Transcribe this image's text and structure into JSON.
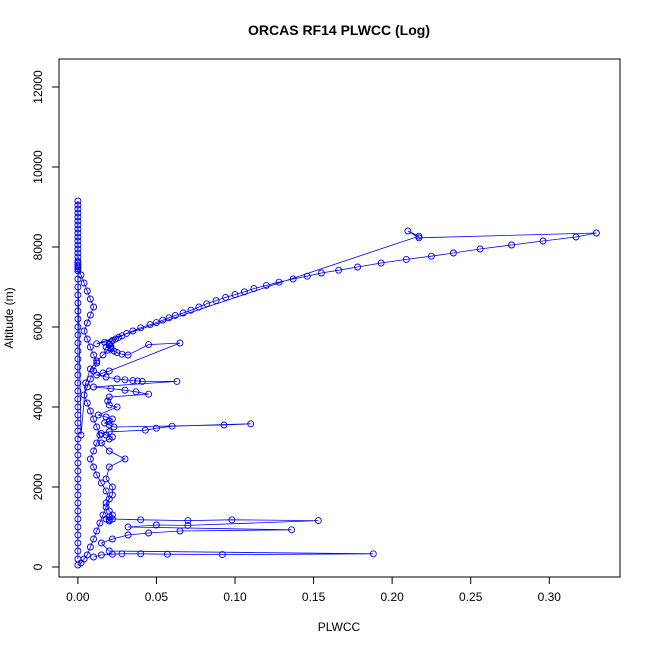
{
  "chart_data": {
    "type": "scatter",
    "title": "ORCAS RF14 PLWCC (Log)",
    "xlabel": "PLWCC",
    "ylabel": "Altitude (m)",
    "xlim": [
      -0.012,
      0.345
    ],
    "ylim": [
      -250,
      12700
    ],
    "x_ticks": [
      0.0,
      0.05,
      0.1,
      0.15,
      0.2,
      0.25,
      0.3
    ],
    "x_tick_labels": [
      "0.00",
      "0.05",
      "0.10",
      "0.15",
      "0.20",
      "0.25",
      "0.30"
    ],
    "y_ticks": [
      0,
      2000,
      4000,
      6000,
      8000,
      10000,
      12000
    ],
    "y_tick_labels": [
      "0",
      "2000",
      "4000",
      "6000",
      "8000",
      "10000",
      "12000"
    ],
    "grid": false,
    "legend": "none",
    "marker": "open-circle",
    "connect_points": true,
    "color": "#0000ff",
    "series": [
      {
        "x": [
          0.0,
          0.0,
          0.0,
          0.0,
          0.0,
          0.0,
          0.0,
          0.0,
          0.0,
          0.0,
          0.0,
          0.0,
          0.0,
          0.0,
          0.0,
          0.0,
          0.0,
          0.0,
          0.0,
          0.0,
          0.002,
          0.005,
          0.008,
          0.012,
          0.016,
          0.019,
          0.021,
          0.021,
          0.02,
          0.02,
          0.021,
          0.022,
          0.024,
          0.026,
          0.028,
          0.031,
          0.035,
          0.04,
          0.046,
          0.05,
          0.054,
          0.058,
          0.062,
          0.067,
          0.072,
          0.077,
          0.082,
          0.088,
          0.094,
          0.1,
          0.106,
          0.112,
          0.12,
          0.128,
          0.137,
          0.146,
          0.155,
          0.166,
          0.178,
          0.193,
          0.209,
          0.225,
          0.239,
          0.256,
          0.276,
          0.296,
          0.317,
          0.33,
          0.217,
          0.21,
          0.217,
          0.012,
          0.017,
          0.022,
          0.02,
          0.018,
          0.021,
          0.023,
          0.025,
          0.028,
          0.032,
          0.045,
          0.065,
          0.02,
          0.016,
          0.012,
          0.018,
          0.025,
          0.03,
          0.035,
          0.038,
          0.041,
          0.063,
          0.01,
          0.021,
          0.03,
          0.037,
          0.045,
          0.02,
          0.019,
          0.02,
          0.025,
          0.013,
          0.018,
          0.022,
          0.02,
          0.017,
          0.02,
          0.023,
          0.093,
          0.11,
          0.06,
          0.05,
          0.043,
          0.02,
          0.015,
          0.018,
          0.022,
          0.02,
          0.015,
          0.02,
          0.03,
          0.02,
          0.018,
          0.022,
          0.022,
          0.018,
          0.02,
          0.022,
          0.02,
          0.018,
          0.02,
          0.02,
          0.022,
          0.04,
          0.07,
          0.098,
          0.153,
          0.07,
          0.05,
          0.032,
          0.136,
          0.065,
          0.045,
          0.032,
          0.022,
          0.015,
          0.02,
          0.188,
          0.092,
          0.057,
          0.04,
          0.028,
          0.022,
          0.015,
          0.01
        ],
        "y": [
          9150,
          9050,
          8950,
          8850,
          8750,
          8650,
          8550,
          8450,
          8350,
          8250,
          8150,
          8050,
          7950,
          7850,
          7750,
          7650,
          7600,
          7550,
          7500,
          7450,
          3300,
          4600,
          4950,
          5150,
          5300,
          5420,
          5480,
          5520,
          5560,
          5580,
          5620,
          5660,
          5700,
          5740,
          5780,
          5840,
          5900,
          5980,
          6060,
          6110,
          6170,
          6230,
          6290,
          6350,
          6420,
          6500,
          6580,
          6660,
          6740,
          6810,
          6880,
          6960,
          7040,
          7120,
          7200,
          7270,
          7350,
          7420,
          7500,
          7600,
          7690,
          7770,
          7850,
          7950,
          8050,
          8150,
          8250,
          8350,
          8230,
          8400,
          8270,
          5580,
          5620,
          5660,
          5580,
          5500,
          5450,
          5400,
          5360,
          5320,
          5300,
          5560,
          5600,
          4900,
          4850,
          4800,
          4750,
          4700,
          4680,
          4660,
          4650,
          4640,
          4640,
          4500,
          4460,
          4420,
          4380,
          4320,
          4250,
          4150,
          4050,
          4000,
          3800,
          3750,
          3700,
          3650,
          3600,
          3550,
          3500,
          3550,
          3580,
          3520,
          3470,
          3420,
          3380,
          3340,
          3300,
          3250,
          3200,
          3100,
          2900,
          2700,
          2500,
          2200,
          2000,
          1800,
          1600,
          1400,
          1300,
          1250,
          1200,
          1180,
          1150,
          1200,
          1180,
          1160,
          1180,
          1160,
          1040,
          1050,
          1000,
          930,
          900,
          850,
          800,
          700,
          600,
          400,
          330,
          310,
          320,
          330,
          330,
          320,
          300,
          250
        ]
      },
      {
        "x": [
          0.0,
          0.0,
          0.0,
          0.0,
          0.0,
          0.0,
          0.0,
          0.0,
          0.0,
          0.0,
          0.0,
          0.0,
          0.0,
          0.0,
          0.0,
          0.0,
          0.0,
          0.0,
          0.0,
          0.0,
          0.0,
          0.0,
          0.0,
          0.0,
          0.0,
          0.0,
          0.0,
          0.0,
          0.0,
          0.0,
          0.0,
          0.0,
          0.0,
          0.0,
          0.0,
          0.0,
          0.0
        ],
        "y": [
          7400,
          7200,
          7000,
          6800,
          6600,
          6400,
          6200,
          6000,
          5800,
          5600,
          5400,
          5200,
          5000,
          4800,
          4600,
          4400,
          4200,
          4000,
          3800,
          3600,
          3400,
          3200,
          3000,
          2800,
          2600,
          2400,
          2200,
          2000,
          1800,
          1600,
          1400,
          1200,
          1000,
          800,
          600,
          400,
          200
        ]
      },
      {
        "x": [
          0.0,
          0.002,
          0.004,
          0.006,
          0.008,
          0.01,
          0.008,
          0.006,
          0.004,
          0.006,
          0.008,
          0.01,
          0.012,
          0.01,
          0.008,
          0.006,
          0.004,
          0.006,
          0.008,
          0.01,
          0.012,
          0.014,
          0.012,
          0.01,
          0.008,
          0.01,
          0.012,
          0.015,
          0.018,
          0.02,
          0.018,
          0.016,
          0.014,
          0.012,
          0.01,
          0.008,
          0.006,
          0.004,
          0.002,
          0.0
        ],
        "y": [
          7500,
          7300,
          7100,
          6900,
          6700,
          6500,
          6300,
          6100,
          5900,
          5700,
          5500,
          5300,
          5100,
          4900,
          4700,
          4500,
          4300,
          4100,
          3900,
          3700,
          3500,
          3300,
          3100,
          2900,
          2700,
          2500,
          2300,
          2100,
          1900,
          1700,
          1500,
          1300,
          1100,
          900,
          700,
          500,
          300,
          200,
          100,
          50
        ]
      }
    ]
  }
}
